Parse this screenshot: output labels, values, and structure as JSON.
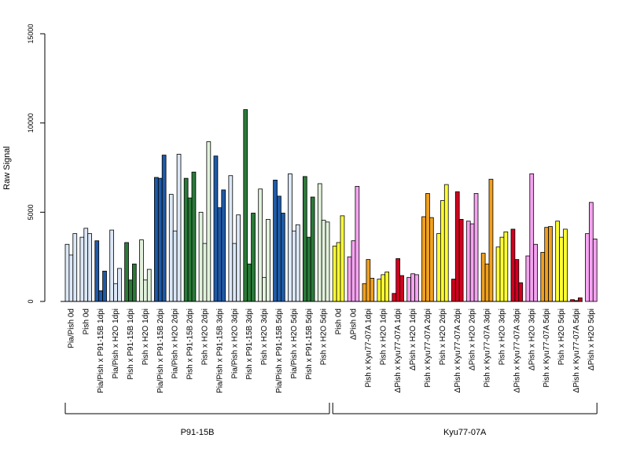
{
  "chart_data": {
    "type": "bar",
    "ylabel": "Raw Signal",
    "ylim": [
      0,
      15000
    ],
    "yticks": [
      0,
      5000,
      10000,
      15000
    ],
    "grid": false,
    "replicates_per_category": 3,
    "categories": [
      "Pia/Pish 0d",
      "Pish 0d",
      "Pia/Pish x P91-15B 1dpi",
      "Pia/Pish x H2O 1dpi",
      "Pish x P91-15B 1dpi",
      "Pish x H2O 1dpi",
      "Pia/Pish x P91-15B 2dpi",
      "Pia/Pish x H2O 2dpi",
      "Pish x P91-15B 2dpi",
      "Pish x H2O 2dpi",
      "Pia/Pish x P91-15B 3dpi",
      "Pia/Pish x H2O 3dpi",
      "Pish x P91-15B 3dpi",
      "Pish x H2O 3dpi",
      "Pia/Pish x P91-15B 5dpi",
      "Pia/Pish x H2O 5dpi",
      "Pish x P91-15B 5dpi",
      "Pish x H2O 5dpi",
      "Pish 0d",
      "ΔPish 0d",
      "Pish x Kyu77-07A 1dpi",
      "Pish x H2O 1dpi",
      "ΔPish x Kyu77-07A 1dpi",
      "ΔPish x H2O 1dpi",
      "Pish x Kyu77-07A 2dpi",
      "Pish x H2O 2dpi",
      "ΔPish x Kyu77-07A 2dpi",
      "ΔPish x H2O 2dpi",
      "Pish x Kyu77-07A 3dpi",
      "Pish x H2O 3dpi",
      "ΔPish x Kyu77-07A 3dpi",
      "ΔPish x H2O 3dpi",
      "Pish x Kyu77-07A 5dpi",
      "Pish x H2O 5dpi",
      "ΔPish x Kyu77-07A 5dpi",
      "ΔPish x H2O 5dpi"
    ],
    "bar_colors": [
      "#dce8f7",
      "#dce8f7",
      "#1f5aa6",
      "#dce8f7",
      "#2a7a38",
      "#e2f2dc",
      "#1f5aa6",
      "#dce8f7",
      "#2a7a38",
      "#e2f2dc",
      "#1f5aa6",
      "#dce8f7",
      "#2a7a38",
      "#e2f2dc",
      "#1f5aa6",
      "#dce8f7",
      "#2a7a38",
      "#e2f2dc",
      "#ffff33",
      "#f5a3f0",
      "#f0a020",
      "#ffff33",
      "#d1001f",
      "#f5a3f0",
      "#f0a020",
      "#ffff33",
      "#d1001f",
      "#f5a3f0",
      "#f0a020",
      "#ffff33",
      "#d1001f",
      "#f5a3f0",
      "#f0a020",
      "#ffff33",
      "#d1001f",
      "#f5a3f0"
    ],
    "values": [
      [
        3200,
        2600,
        3800
      ],
      [
        3600,
        4100,
        3800
      ],
      [
        3400,
        600,
        1700
      ],
      [
        4000,
        1000,
        1850
      ],
      [
        3300,
        1200,
        2100
      ],
      [
        3450,
        1200,
        1800
      ],
      [
        6950,
        6900,
        8200
      ],
      [
        6000,
        3950,
        8250
      ],
      [
        6900,
        5800,
        7250
      ],
      [
        5000,
        3250,
        8950
      ],
      [
        8150,
        5250,
        6250
      ],
      [
        7050,
        3250,
        4850
      ],
      [
        10750,
        2100,
        4950
      ],
      [
        6300,
        1350,
        4600
      ],
      [
        6800,
        5900,
        4950
      ],
      [
        7150,
        3950,
        4300
      ],
      [
        7000,
        3600,
        5850
      ],
      [
        6600,
        4550,
        4450
      ],
      [
        3100,
        3300,
        4800
      ],
      [
        2500,
        3400,
        6450
      ],
      [
        1000,
        2350,
        1300
      ],
      [
        1250,
        1500,
        1650
      ],
      [
        450,
        2400,
        1450
      ],
      [
        1350,
        1550,
        1500
      ],
      [
        4750,
        6050,
        4700
      ],
      [
        3800,
        5650,
        6550
      ],
      [
        1250,
        6150,
        4600
      ],
      [
        4500,
        4350,
        6050
      ],
      [
        2700,
        2100,
        6850
      ],
      [
        3050,
        3600,
        3900
      ],
      [
        4050,
        2350,
        1050
      ],
      [
        2550,
        7150,
        3200
      ],
      [
        2750,
        4150,
        4200
      ],
      [
        4500,
        3600,
        4050
      ],
      [
        100,
        50,
        200
      ],
      [
        3800,
        5550,
        3500
      ]
    ],
    "groups": [
      {
        "label": "P91-15B",
        "start": 0,
        "end": 17
      },
      {
        "label": "Kyu77-07A",
        "start": 18,
        "end": 35
      }
    ]
  }
}
